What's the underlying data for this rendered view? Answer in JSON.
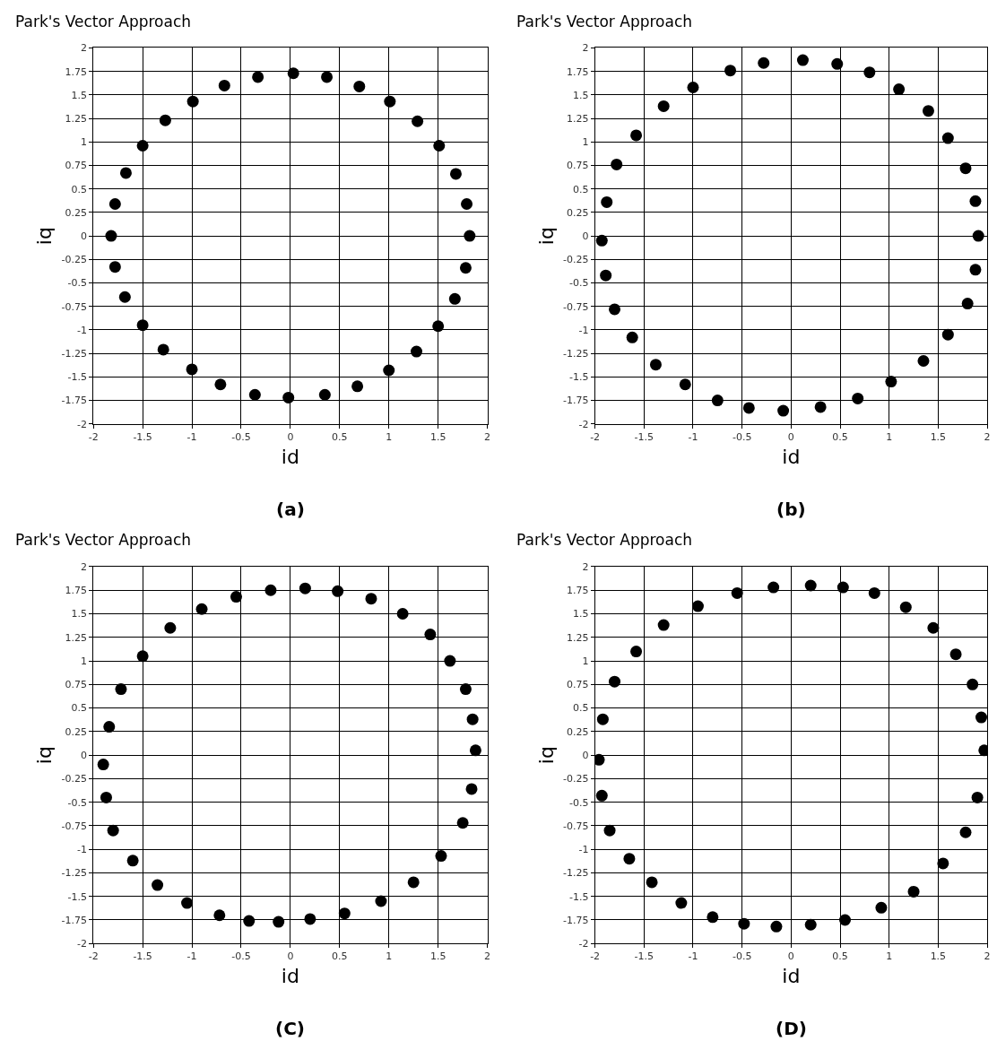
{
  "chart_data": [
    {
      "type": "scatter",
      "marker": "circle",
      "title": "Park's Vector Approach",
      "xlabel": "id",
      "ylabel": "iq",
      "annotations": [
        "(a)"
      ],
      "grid": true,
      "color": "#000000",
      "x": [
        1.82,
        1.79,
        1.68,
        1.51,
        1.29,
        1.01,
        0.7,
        0.37,
        0.03,
        -0.33,
        -0.67,
        -0.99,
        -1.27,
        -1.5,
        -1.67,
        -1.78,
        -1.82,
        -1.78,
        -1.68,
        -1.5,
        -1.29,
        -1.0,
        -0.71,
        -0.36,
        -0.02,
        0.35,
        0.68,
        1.0,
        1.28,
        1.5,
        1.67,
        1.78
      ],
      "values": [
        0,
        0.34,
        0.66,
        0.96,
        1.22,
        1.43,
        1.59,
        1.69,
        1.73,
        1.69,
        1.6,
        1.43,
        1.23,
        0.96,
        0.67,
        0.34,
        0,
        -0.33,
        -0.65,
        -0.95,
        -1.21,
        -1.42,
        -1.58,
        -1.69,
        -1.72,
        -1.69,
        -1.6,
        -1.43,
        -1.23,
        -0.96,
        -0.67,
        -0.34
      ],
      "xlim": [
        -2,
        2
      ],
      "ylim": [
        -2,
        2
      ],
      "xticks": [
        -2,
        -1.5,
        -1,
        -0.5,
        0,
        0.5,
        1,
        1.5,
        2
      ],
      "yticks": [
        -2,
        -1.75,
        -1.5,
        -1.25,
        -1,
        -0.75,
        -0.5,
        -0.25,
        0,
        0.25,
        0.5,
        0.75,
        1,
        1.25,
        1.5,
        1.75,
        2
      ]
    },
    {
      "type": "scatter",
      "marker": "circle",
      "title": "Park's Vector Approach",
      "xlabel": "id",
      "ylabel": "iq",
      "annotations": [
        "(b)"
      ],
      "grid": true,
      "color": "#000000",
      "x": [
        1.91,
        1.88,
        1.78,
        1.6,
        1.4,
        1.1,
        0.8,
        0.47,
        0.12,
        -0.28,
        -0.62,
        -1.0,
        -1.3,
        -1.58,
        -1.78,
        -1.88,
        -1.93,
        -1.89,
        -1.8,
        -1.62,
        -1.38,
        -1.08,
        -0.75,
        -0.43,
        -0.08,
        0.3,
        0.68,
        1.02,
        1.35,
        1.6,
        1.8,
        1.88
      ],
      "values": [
        0,
        0.37,
        0.72,
        1.04,
        1.33,
        1.56,
        1.74,
        1.83,
        1.87,
        1.84,
        1.76,
        1.58,
        1.38,
        1.07,
        0.76,
        0.36,
        -0.05,
        -0.42,
        -0.78,
        -1.08,
        -1.37,
        -1.58,
        -1.75,
        -1.83,
        -1.86,
        -1.82,
        -1.73,
        -1.55,
        -1.33,
        -1.05,
        -0.72,
        -0.36
      ],
      "xlim": [
        -2,
        2
      ],
      "ylim": [
        -2,
        2
      ],
      "xticks": [
        -2,
        -1.5,
        -1,
        -0.5,
        0,
        0.5,
        1,
        1.5,
        2
      ],
      "yticks": [
        -2,
        -1.75,
        -1.5,
        -1.25,
        -1,
        -0.75,
        -0.5,
        -0.25,
        0,
        0.25,
        0.5,
        0.75,
        1,
        1.25,
        1.5,
        1.75,
        2
      ]
    },
    {
      "type": "scatter",
      "marker": "circle",
      "title": "Park's Vector Approach",
      "xlabel": "id",
      "ylabel": "iq",
      "annotations": [
        "(C)"
      ],
      "grid": true,
      "color": "#000000",
      "x": [
        1.88,
        1.85,
        1.78,
        1.62,
        1.42,
        1.14,
        0.82,
        0.48,
        0.15,
        -0.2,
        -0.55,
        -0.9,
        -1.22,
        -1.5,
        -1.72,
        -1.84,
        -1.9,
        -1.87,
        -1.8,
        -1.6,
        -1.35,
        -1.05,
        -0.72,
        -0.42,
        -0.12,
        0.2,
        0.55,
        0.92,
        1.25,
        1.53,
        1.75,
        1.84
      ],
      "values": [
        0.05,
        0.38,
        0.7,
        1.0,
        1.28,
        1.5,
        1.66,
        1.74,
        1.77,
        1.75,
        1.68,
        1.55,
        1.35,
        1.05,
        0.7,
        0.3,
        -0.1,
        -0.45,
        -0.8,
        -1.12,
        -1.38,
        -1.57,
        -1.7,
        -1.76,
        -1.77,
        -1.74,
        -1.68,
        -1.55,
        -1.35,
        -1.07,
        -0.72,
        -0.36
      ],
      "xlim": [
        -2,
        2
      ],
      "ylim": [
        -2,
        2
      ],
      "xticks": [
        -2,
        -1.5,
        -1,
        -0.5,
        0,
        0.5,
        1,
        1.5,
        2
      ],
      "yticks": [
        -2,
        -1.75,
        -1.5,
        -1.25,
        -1,
        -0.75,
        -0.5,
        -0.25,
        0,
        0.25,
        0.5,
        0.75,
        1,
        1.25,
        1.5,
        1.75,
        2
      ]
    },
    {
      "type": "scatter",
      "marker": "circle",
      "title": "Park's Vector Approach",
      "xlabel": "id",
      "ylabel": "iq",
      "annotations": [
        "(D)"
      ],
      "grid": true,
      "color": "#000000",
      "x": [
        1.97,
        1.94,
        1.85,
        1.68,
        1.45,
        1.17,
        0.85,
        0.53,
        0.2,
        -0.18,
        -0.55,
        -0.95,
        -1.3,
        -1.58,
        -1.8,
        -1.92,
        -1.96,
        -1.93,
        -1.85,
        -1.65,
        -1.42,
        -1.12,
        -0.8,
        -0.48,
        -0.15,
        0.2,
        0.55,
        0.92,
        1.25,
        1.55,
        1.78,
        1.9
      ],
      "values": [
        0.05,
        0.4,
        0.75,
        1.07,
        1.35,
        1.57,
        1.72,
        1.78,
        1.8,
        1.78,
        1.72,
        1.58,
        1.38,
        1.1,
        0.78,
        0.38,
        -0.05,
        -0.43,
        -0.8,
        -1.1,
        -1.35,
        -1.57,
        -1.72,
        -1.79,
        -1.82,
        -1.8,
        -1.75,
        -1.62,
        -1.45,
        -1.15,
        -0.82,
        -0.45
      ],
      "xlim": [
        -2,
        2
      ],
      "ylim": [
        -2,
        2
      ],
      "xticks": [
        -2,
        -1.5,
        -1,
        -0.5,
        0,
        0.5,
        1,
        1.5,
        2
      ],
      "yticks": [
        -2,
        -1.75,
        -1.5,
        -1.25,
        -1,
        -0.75,
        -0.5,
        -0.25,
        0,
        0.25,
        0.5,
        0.75,
        1,
        1.25,
        1.5,
        1.75,
        2
      ]
    }
  ]
}
